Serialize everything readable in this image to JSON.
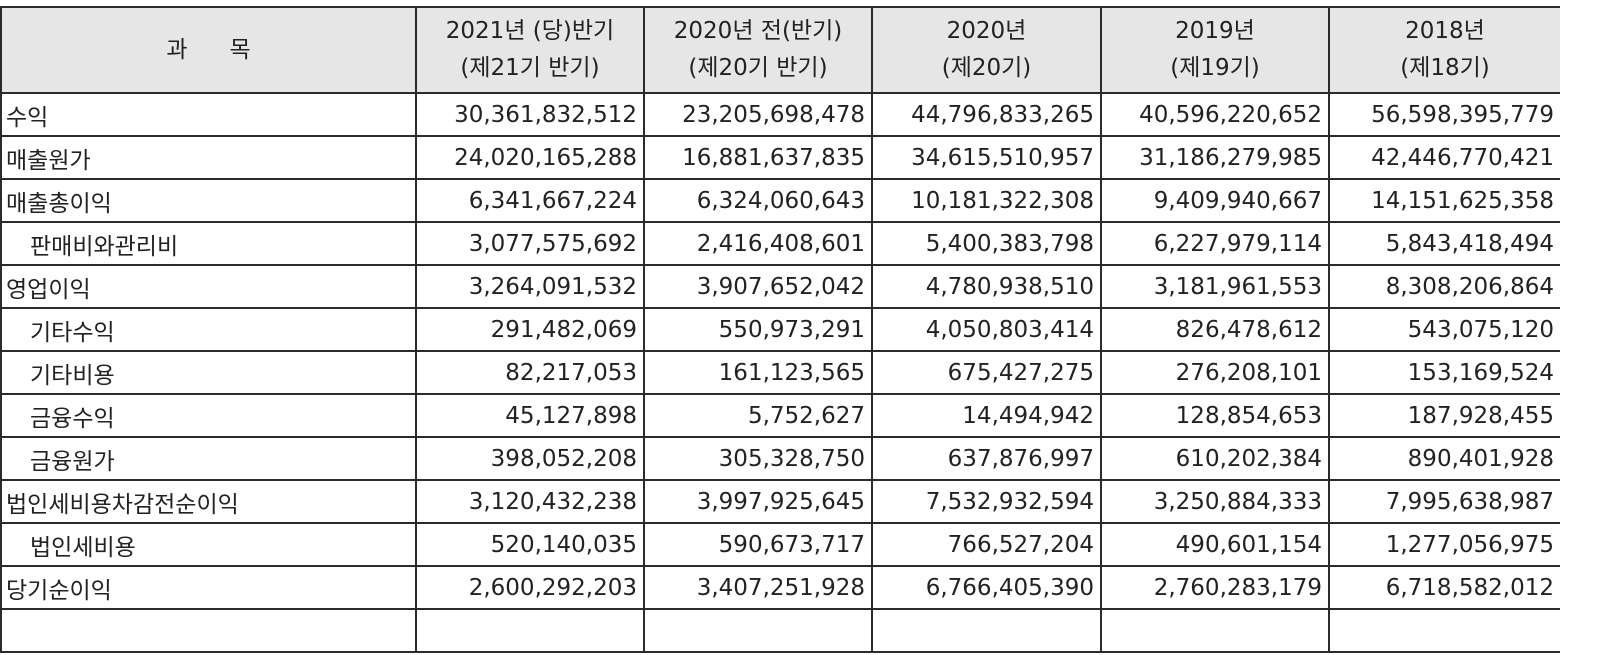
{
  "header": {
    "subject_a": "과",
    "subject_b": "목",
    "columns": [
      {
        "line1": "2021년 (당)반기",
        "line2": "(제21기 반기)"
      },
      {
        "line1": "2020년 전(반기)",
        "line2": "(제20기 반기)"
      },
      {
        "line1": "2020년",
        "line2": "(제20기)"
      },
      {
        "line1": "2019년",
        "line2": "(제19기)"
      },
      {
        "line1": "2018년",
        "line2": "(제18기)"
      }
    ]
  },
  "rows": [
    {
      "label": "수익",
      "indent": false,
      "values": [
        "30,361,832,512",
        "23,205,698,478",
        "44,796,833,265",
        "40,596,220,652",
        "56,598,395,779"
      ]
    },
    {
      "label": "매출원가",
      "indent": false,
      "values": [
        "24,020,165,288",
        "16,881,637,835",
        "34,615,510,957",
        "31,186,279,985",
        "42,446,770,421"
      ]
    },
    {
      "label": "매출총이익",
      "indent": false,
      "values": [
        "6,341,667,224",
        "6,324,060,643",
        "10,181,322,308",
        "9,409,940,667",
        "14,151,625,358"
      ]
    },
    {
      "label": "판매비와관리비",
      "indent": true,
      "values": [
        "3,077,575,692",
        "2,416,408,601",
        "5,400,383,798",
        "6,227,979,114",
        "5,843,418,494"
      ]
    },
    {
      "label": "영업이익",
      "indent": false,
      "values": [
        "3,264,091,532",
        "3,907,652,042",
        "4,780,938,510",
        "3,181,961,553",
        "8,308,206,864"
      ]
    },
    {
      "label": "기타수익",
      "indent": true,
      "values": [
        "291,482,069",
        "550,973,291",
        "4,050,803,414",
        "826,478,612",
        "543,075,120"
      ]
    },
    {
      "label": "기타비용",
      "indent": true,
      "values": [
        "82,217,053",
        "161,123,565",
        "675,427,275",
        "276,208,101",
        "153,169,524"
      ]
    },
    {
      "label": "금융수익",
      "indent": true,
      "values": [
        "45,127,898",
        "5,752,627",
        "14,494,942",
        "128,854,653",
        "187,928,455"
      ]
    },
    {
      "label": "금융원가",
      "indent": true,
      "values": [
        "398,052,208",
        "305,328,750",
        "637,876,997",
        "610,202,384",
        "890,401,928"
      ]
    },
    {
      "label": "법인세비용차감전순이익",
      "indent": false,
      "values": [
        "3,120,432,238",
        "3,997,925,645",
        "7,532,932,594",
        "3,250,884,333",
        "7,995,638,987"
      ]
    },
    {
      "label": "법인세비용",
      "indent": true,
      "values": [
        "520,140,035",
        "590,673,717",
        "766,527,204",
        "490,601,154",
        "1,277,056,975"
      ]
    },
    {
      "label": "당기순이익",
      "indent": false,
      "values": [
        "2,600,292,203",
        "3,407,251,928",
        "6,766,405,390",
        "2,760,283,179",
        "6,718,582,012"
      ]
    }
  ],
  "colors": {
    "header_bg": "#e6e6e6",
    "border": "#2b2b2b"
  }
}
